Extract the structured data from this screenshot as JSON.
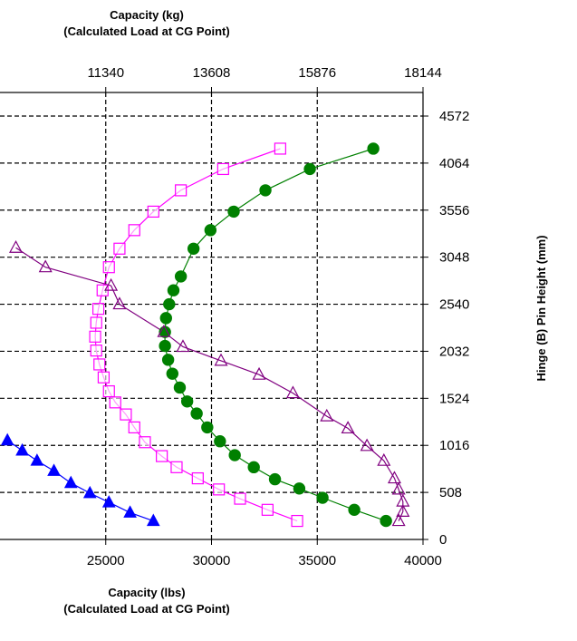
{
  "chart_data": {
    "type": "scatter",
    "top_axis": {
      "title_line1": "Capacity (kg)",
      "title_line2": "(Calculated Load at CG Point)",
      "ticks": [
        "11340",
        "13608",
        "15876",
        "18144"
      ],
      "tick_values_lbs": [
        25000,
        30000,
        35000,
        40000
      ]
    },
    "bottom_axis": {
      "title_line1": "Capacity (lbs)",
      "title_line2": "(Calculated Load at CG Point)",
      "ticks": [
        "25000",
        "30000",
        "35000",
        "40000"
      ],
      "tick_values": [
        25000,
        30000,
        35000,
        40000
      ],
      "xlim": [
        20000,
        40000
      ]
    },
    "right_axis": {
      "title": "Hinge (B) Pin Height (mm)",
      "ticks": [
        "0",
        "508",
        "1016",
        "1524",
        "2032",
        "2540",
        "3048",
        "3556",
        "4064",
        "4572"
      ],
      "tick_values": [
        0,
        508,
        1016,
        1524,
        2032,
        2540,
        3048,
        3556,
        4064,
        4572
      ],
      "ylim": [
        0,
        4572
      ]
    },
    "grid": true,
    "series": [
      {
        "marker": "filled-circle",
        "color": "#008000",
        "points": [
          [
            38250,
            200
          ],
          [
            36750,
            320
          ],
          [
            35250,
            450
          ],
          [
            34150,
            550
          ],
          [
            33000,
            650
          ],
          [
            32000,
            780
          ],
          [
            31100,
            910
          ],
          [
            30400,
            1060
          ],
          [
            29800,
            1210
          ],
          [
            29300,
            1360
          ],
          [
            28850,
            1490
          ],
          [
            28500,
            1640
          ],
          [
            28150,
            1790
          ],
          [
            27950,
            1940
          ],
          [
            27800,
            2090
          ],
          [
            27800,
            2240
          ],
          [
            27850,
            2390
          ],
          [
            28000,
            2540
          ],
          [
            28200,
            2690
          ],
          [
            28550,
            2840
          ],
          [
            29150,
            3140
          ],
          [
            29950,
            3340
          ],
          [
            31050,
            3540
          ],
          [
            32550,
            3770
          ],
          [
            34650,
            4000
          ],
          [
            37650,
            4220
          ]
        ]
      },
      {
        "marker": "open-square",
        "color": "#ff00ff",
        "points": [
          [
            34050,
            200
          ],
          [
            32650,
            320
          ],
          [
            31350,
            440
          ],
          [
            30350,
            540
          ],
          [
            29350,
            660
          ],
          [
            28350,
            780
          ],
          [
            27650,
            900
          ],
          [
            26850,
            1050
          ],
          [
            26350,
            1210
          ],
          [
            25950,
            1350
          ],
          [
            25450,
            1480
          ],
          [
            25150,
            1600
          ],
          [
            24900,
            1750
          ],
          [
            24700,
            1890
          ],
          [
            24550,
            2040
          ],
          [
            24500,
            2190
          ],
          [
            24550,
            2340
          ],
          [
            24650,
            2490
          ],
          [
            24850,
            2690
          ],
          [
            25150,
            2940
          ],
          [
            25650,
            3140
          ],
          [
            26350,
            3340
          ],
          [
            27250,
            3540
          ],
          [
            28550,
            3770
          ],
          [
            30550,
            4000
          ],
          [
            33250,
            4220
          ]
        ]
      },
      {
        "marker": "open-triangle",
        "color": "#800080",
        "points": [
          [
            38850,
            200
          ],
          [
            39050,
            300
          ],
          [
            39050,
            410
          ],
          [
            38850,
            540
          ],
          [
            38650,
            660
          ],
          [
            38150,
            850
          ],
          [
            37350,
            1010
          ],
          [
            36450,
            1200
          ],
          [
            35450,
            1330
          ],
          [
            33850,
            1580
          ],
          [
            32250,
            1780
          ],
          [
            30450,
            1930
          ],
          [
            28650,
            2080
          ],
          [
            27750,
            2240
          ],
          [
            25650,
            2540
          ],
          [
            25250,
            2740
          ],
          [
            22150,
            2940
          ],
          [
            20750,
            3150
          ]
        ]
      },
      {
        "marker": "filled-triangle",
        "color": "#0000ff",
        "points": [
          [
            27250,
            200
          ],
          [
            26150,
            290
          ],
          [
            25150,
            400
          ],
          [
            24250,
            500
          ],
          [
            23350,
            610
          ],
          [
            22550,
            740
          ],
          [
            21750,
            850
          ],
          [
            21050,
            960
          ],
          [
            20350,
            1070
          ]
        ]
      }
    ]
  }
}
